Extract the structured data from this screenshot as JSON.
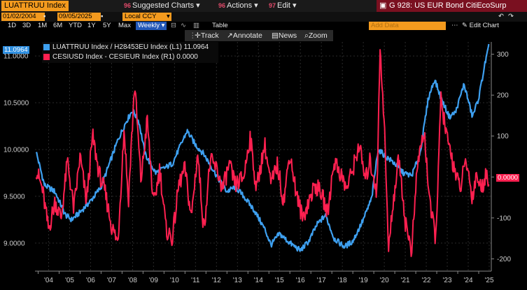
{
  "topbar": {
    "ticker": "LUATTRUU Index",
    "menus": [
      {
        "glyph": "96",
        "label": "Suggested Charts",
        "x": 0
      },
      {
        "glyph": "96",
        "label": "Actions",
        "x": 0
      },
      {
        "glyph": "97",
        "label": "Edit",
        "x": 0
      }
    ],
    "chart_title": "G 928: US EUR Bond CitiEcoSurp"
  },
  "datebar": {
    "start": "01/02/2004",
    "end": "09/05/2025",
    "currency": "Local CCY"
  },
  "rangebar": {
    "ranges": [
      "1D",
      "3D",
      "1M",
      "6M",
      "YTD",
      "1Y",
      "5Y",
      "Max"
    ],
    "selected": "Weekly",
    "table": "Table",
    "add_data": "Add Data",
    "edit_chart": "Edit Chart"
  },
  "tools": [
    "Track",
    "Annotate",
    "News",
    "Zoom"
  ],
  "legend": {
    "series1": "LUATTRUU Index / H28453EU Index (L1)  11.0964",
    "series2": "CESIUSD Index - CESIEUR Index (R1)        0.0000"
  },
  "colors": {
    "series1": "#3ea0f0",
    "series2": "#ff2050",
    "orange": "#f39a1e"
  },
  "chart_data": {
    "type": "line",
    "title": "US EUR Bond CitiEcoSurp",
    "x_ticks": [
      "'04",
      "'05",
      "'06",
      "'07",
      "'08",
      "'09",
      "'10",
      "'11",
      "'12",
      "'13",
      "'14",
      "'15",
      "'16",
      "'17",
      "'18",
      "'19",
      "'20",
      "'21",
      "'22",
      "'23",
      "'24",
      "'25"
    ],
    "y_left": {
      "range": [
        8.7,
        11.15
      ],
      "ticks": [
        "9.0000",
        "9.5000",
        "10.0000",
        "10.5000",
        "11.0000"
      ],
      "last_value": "11.0964"
    },
    "y_right": {
      "range": [
        -230,
        330
      ],
      "ticks": [
        "-200",
        "-100",
        "0",
        "100",
        "200",
        "300"
      ],
      "last_value": "0.0000"
    },
    "series": [
      {
        "name": "LUATTRUU Index / H28453EU Index (L1)",
        "axis": "left",
        "color": "#3ea0f0",
        "anchors": [
          [
            2003.9,
            9.98
          ],
          [
            2004.3,
            9.62
          ],
          [
            2004.8,
            9.55
          ],
          [
            2005.3,
            9.3
          ],
          [
            2005.6,
            9.25
          ],
          [
            2006.0,
            9.33
          ],
          [
            2006.5,
            9.45
          ],
          [
            2007.0,
            9.6
          ],
          [
            2007.4,
            9.85
          ],
          [
            2007.8,
            10.1
          ],
          [
            2008.2,
            10.3
          ],
          [
            2008.5,
            10.42
          ],
          [
            2008.8,
            10.3
          ],
          [
            2009.1,
            9.95
          ],
          [
            2009.6,
            9.75
          ],
          [
            2010.0,
            9.8
          ],
          [
            2010.4,
            9.85
          ],
          [
            2010.8,
            10.05
          ],
          [
            2011.1,
            10.2
          ],
          [
            2011.5,
            10.05
          ],
          [
            2011.9,
            9.95
          ],
          [
            2012.3,
            9.8
          ],
          [
            2012.7,
            9.65
          ],
          [
            2013.0,
            9.55
          ],
          [
            2013.4,
            9.6
          ],
          [
            2013.8,
            9.5
          ],
          [
            2014.3,
            9.35
          ],
          [
            2014.8,
            9.15
          ],
          [
            2015.1,
            8.98
          ],
          [
            2015.5,
            9.1
          ],
          [
            2016.0,
            9.0
          ],
          [
            2016.5,
            8.92
          ],
          [
            2016.9,
            9.02
          ],
          [
            2017.3,
            9.2
          ],
          [
            2017.7,
            9.3
          ],
          [
            2018.1,
            9.05
          ],
          [
            2018.6,
            8.96
          ],
          [
            2019.0,
            9.02
          ],
          [
            2019.5,
            9.25
          ],
          [
            2019.9,
            9.48
          ],
          [
            2020.2,
            10.0
          ],
          [
            2020.6,
            9.92
          ],
          [
            2021.0,
            9.85
          ],
          [
            2021.4,
            9.75
          ],
          [
            2021.8,
            9.72
          ],
          [
            2022.2,
            9.95
          ],
          [
            2022.6,
            10.55
          ],
          [
            2022.9,
            10.75
          ],
          [
            2023.2,
            10.55
          ],
          [
            2023.6,
            10.35
          ],
          [
            2023.9,
            10.4
          ],
          [
            2024.3,
            10.7
          ],
          [
            2024.7,
            10.35
          ],
          [
            2025.0,
            10.55
          ],
          [
            2025.3,
            10.92
          ],
          [
            2025.48,
            11.1
          ]
        ]
      },
      {
        "name": "CESIUSD Index - CESIEUR Index (R1)",
        "axis": "right",
        "color": "#ff2050",
        "anchors": [
          [
            2003.9,
            20
          ],
          [
            2004.2,
            -30
          ],
          [
            2004.5,
            -130
          ],
          [
            2004.8,
            -60
          ],
          [
            2005.1,
            -100
          ],
          [
            2005.4,
            40
          ],
          [
            2005.7,
            -80
          ],
          [
            2006.0,
            50
          ],
          [
            2006.3,
            -60
          ],
          [
            2006.6,
            100
          ],
          [
            2006.9,
            10
          ],
          [
            2007.2,
            -40
          ],
          [
            2007.5,
            -120
          ],
          [
            2007.8,
            -160
          ],
          [
            2008.1,
            120
          ],
          [
            2008.3,
            -60
          ],
          [
            2008.6,
            230
          ],
          [
            2008.9,
            -10
          ],
          [
            2009.2,
            140
          ],
          [
            2009.5,
            -70
          ],
          [
            2009.8,
            20
          ],
          [
            2010.1,
            -130
          ],
          [
            2010.4,
            -150
          ],
          [
            2010.7,
            -20
          ],
          [
            2011.0,
            20
          ],
          [
            2011.3,
            -100
          ],
          [
            2011.6,
            60
          ],
          [
            2011.9,
            -130
          ],
          [
            2012.2,
            40
          ],
          [
            2012.5,
            20
          ],
          [
            2012.8,
            -30
          ],
          [
            2013.1,
            30
          ],
          [
            2013.4,
            -20
          ],
          [
            2013.8,
            0
          ],
          [
            2014.1,
            100
          ],
          [
            2014.4,
            -30
          ],
          [
            2014.8,
            80
          ],
          [
            2015.1,
            -20
          ],
          [
            2015.4,
            30
          ],
          [
            2015.7,
            -60
          ],
          [
            2016.0,
            60
          ],
          [
            2016.3,
            -40
          ],
          [
            2016.6,
            -100
          ],
          [
            2016.9,
            -60
          ],
          [
            2017.2,
            -20
          ],
          [
            2017.5,
            -40
          ],
          [
            2017.8,
            -90
          ],
          [
            2018.1,
            40
          ],
          [
            2018.4,
            10
          ],
          [
            2018.7,
            -30
          ],
          [
            2019.0,
            20
          ],
          [
            2019.3,
            80
          ],
          [
            2019.6,
            -10
          ],
          [
            2019.8,
            40
          ],
          [
            2020.0,
            0
          ],
          [
            2020.15,
            -40
          ],
          [
            2020.3,
            320
          ],
          [
            2020.5,
            130
          ],
          [
            2020.7,
            -180
          ],
          [
            2020.9,
            -70
          ],
          [
            2021.2,
            50
          ],
          [
            2021.5,
            -110
          ],
          [
            2021.8,
            -180
          ],
          [
            2022.1,
            40
          ],
          [
            2022.4,
            110
          ],
          [
            2022.7,
            -80
          ],
          [
            2022.95,
            -150
          ],
          [
            2023.2,
            190
          ],
          [
            2023.5,
            90
          ],
          [
            2023.8,
            30
          ],
          [
            2024.1,
            -30
          ],
          [
            2024.4,
            40
          ],
          [
            2024.7,
            -50
          ],
          [
            2024.9,
            10
          ],
          [
            2025.1,
            -30
          ],
          [
            2025.3,
            0
          ],
          [
            2025.48,
            0
          ]
        ]
      }
    ]
  }
}
